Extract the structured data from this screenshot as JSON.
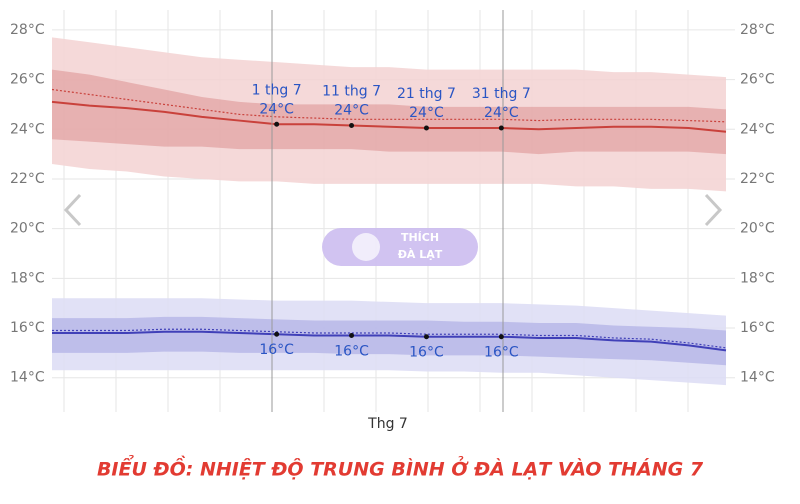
{
  "chart_data": {
    "type": "band-line",
    "title": "BIỂU ĐỒ: NHIỆT ĐỘ TRUNG BÌNH Ở ĐÀ LẠT VÀO THÁNG 7",
    "xlabel": "Thg 7",
    "watermark": [
      "THÍCH",
      "ĐÀ LẠT"
    ],
    "categories": [
      null,
      null,
      null,
      null,
      null,
      null,
      "1 thg 7",
      null,
      "11 thg 7",
      null,
      "21 thg 7",
      null,
      "31 thg 7",
      null,
      null,
      null,
      null,
      null,
      null
    ],
    "ylim": [
      12.7,
      28.8
    ],
    "yticks": [
      {
        "value": 14,
        "label": "14°C"
      },
      {
        "value": 16,
        "label": "16°C"
      },
      {
        "value": 18,
        "label": "18°C"
      },
      {
        "value": 20,
        "label": "20°C"
      },
      {
        "value": 22,
        "label": "22°C"
      },
      {
        "value": 24,
        "label": "24°C"
      },
      {
        "value": 26,
        "label": "26°C"
      },
      {
        "value": 28,
        "label": "28°C"
      }
    ],
    "grid": true,
    "bands": [
      {
        "color": "#f3d2d2",
        "upper": [
          27.7,
          27.5,
          27.3,
          27.1,
          26.9,
          26.8,
          26.7,
          26.6,
          26.5,
          26.5,
          26.4,
          26.4,
          26.4,
          26.4,
          26.4,
          26.3,
          26.3,
          26.2,
          26.1
        ],
        "lower": [
          22.6,
          22.4,
          22.3,
          22.1,
          22.0,
          21.9,
          21.9,
          21.8,
          21.8,
          21.8,
          21.8,
          21.8,
          21.8,
          21.8,
          21.7,
          21.7,
          21.6,
          21.6,
          21.5
        ]
      },
      {
        "color": "#e4a9a9",
        "upper": [
          26.4,
          26.2,
          25.9,
          25.6,
          25.3,
          25.1,
          25.0,
          25.0,
          25.0,
          25.0,
          24.9,
          24.9,
          24.9,
          24.9,
          24.9,
          24.9,
          24.9,
          24.9,
          24.8
        ],
        "lower": [
          23.6,
          23.5,
          23.4,
          23.3,
          23.3,
          23.2,
          23.2,
          23.2,
          23.2,
          23.1,
          23.1,
          23.1,
          23.1,
          23.0,
          23.1,
          23.1,
          23.1,
          23.1,
          23.0
        ]
      },
      {
        "color": "#dcdcf4",
        "upper": [
          17.2,
          17.2,
          17.2,
          17.2,
          17.2,
          17.15,
          17.1,
          17.1,
          17.1,
          17.05,
          17.0,
          17.0,
          17.0,
          16.95,
          16.9,
          16.8,
          16.7,
          16.6,
          16.5
        ],
        "lower": [
          14.3,
          14.3,
          14.3,
          14.3,
          14.3,
          14.3,
          14.3,
          14.3,
          14.3,
          14.3,
          14.25,
          14.25,
          14.2,
          14.2,
          14.1,
          14.0,
          13.9,
          13.8,
          13.7
        ]
      },
      {
        "color": "#b7b7e8",
        "upper": [
          16.4,
          16.4,
          16.4,
          16.45,
          16.45,
          16.4,
          16.35,
          16.3,
          16.3,
          16.3,
          16.3,
          16.25,
          16.25,
          16.2,
          16.2,
          16.1,
          16.05,
          16.0,
          15.9
        ],
        "lower": [
          15.0,
          15.0,
          15.0,
          15.05,
          15.05,
          15.0,
          15.0,
          15.0,
          14.95,
          14.95,
          14.9,
          14.9,
          14.9,
          14.85,
          14.8,
          14.75,
          14.7,
          14.6,
          14.5
        ]
      }
    ],
    "series": [
      {
        "color": "#c9413b",
        "style": "dotted",
        "values": [
          25.6,
          25.4,
          25.2,
          25.0,
          24.8,
          24.6,
          24.5,
          24.45,
          24.4,
          24.4,
          24.4,
          24.4,
          24.4,
          24.35,
          24.4,
          24.4,
          24.4,
          24.35,
          24.3
        ]
      },
      {
        "color": "#c9413b",
        "style": "solid",
        "label_side": "above",
        "values": [
          25.1,
          24.95,
          24.85,
          24.7,
          24.5,
          24.35,
          24.2,
          24.2,
          24.15,
          24.1,
          24.05,
          24.05,
          24.05,
          24.0,
          24.05,
          24.1,
          24.1,
          24.05,
          23.9
        ],
        "value_labels": [
          null,
          null,
          null,
          null,
          null,
          null,
          "24°C",
          null,
          "24°C",
          null,
          "24°C",
          null,
          "24°C",
          null,
          null,
          null,
          null,
          null,
          null
        ]
      },
      {
        "color": "#4040b8",
        "style": "dotted",
        "values": [
          15.9,
          15.9,
          15.9,
          15.95,
          15.95,
          15.9,
          15.85,
          15.8,
          15.8,
          15.8,
          15.75,
          15.75,
          15.75,
          15.7,
          15.7,
          15.6,
          15.55,
          15.4,
          15.2
        ]
      },
      {
        "color": "#4040b8",
        "style": "solid",
        "label_side": "below",
        "values": [
          15.8,
          15.8,
          15.8,
          15.85,
          15.85,
          15.8,
          15.75,
          15.7,
          15.7,
          15.7,
          15.65,
          15.65,
          15.65,
          15.6,
          15.6,
          15.5,
          15.45,
          15.3,
          15.1
        ],
        "value_labels": [
          null,
          null,
          null,
          null,
          null,
          null,
          "16°C",
          null,
          "16°C",
          null,
          "16°C",
          null,
          "16°C",
          null,
          null,
          null,
          null,
          null,
          null
        ]
      }
    ]
  }
}
